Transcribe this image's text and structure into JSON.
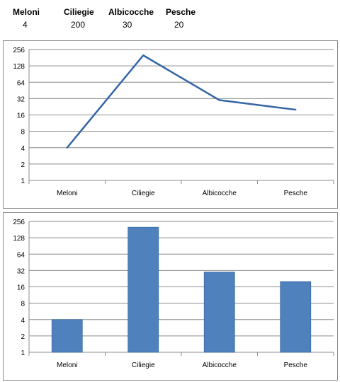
{
  "table": {
    "headers": [
      "Meloni",
      "Ciliegie",
      "Albicocche",
      "Pesche"
    ],
    "values": [
      "4",
      "200",
      "30",
      "20"
    ]
  },
  "chart_data": [
    {
      "type": "line",
      "scale": "log2",
      "categories": [
        "Meloni",
        "Ciliegie",
        "Albicocche",
        "Pesche"
      ],
      "values": [
        4,
        200,
        30,
        20
      ],
      "yticks": [
        1,
        2,
        4,
        8,
        16,
        32,
        64,
        128,
        256
      ],
      "ylim": [
        1,
        256
      ],
      "grid": true,
      "color": "#3465a4"
    },
    {
      "type": "bar",
      "scale": "log2",
      "categories": [
        "Meloni",
        "Ciliegie",
        "Albicocche",
        "Pesche"
      ],
      "values": [
        4,
        200,
        30,
        20
      ],
      "yticks": [
        1,
        2,
        4,
        8,
        16,
        32,
        64,
        128,
        256
      ],
      "ylim": [
        1,
        256
      ],
      "grid": true,
      "color": "#4f81bd"
    }
  ]
}
